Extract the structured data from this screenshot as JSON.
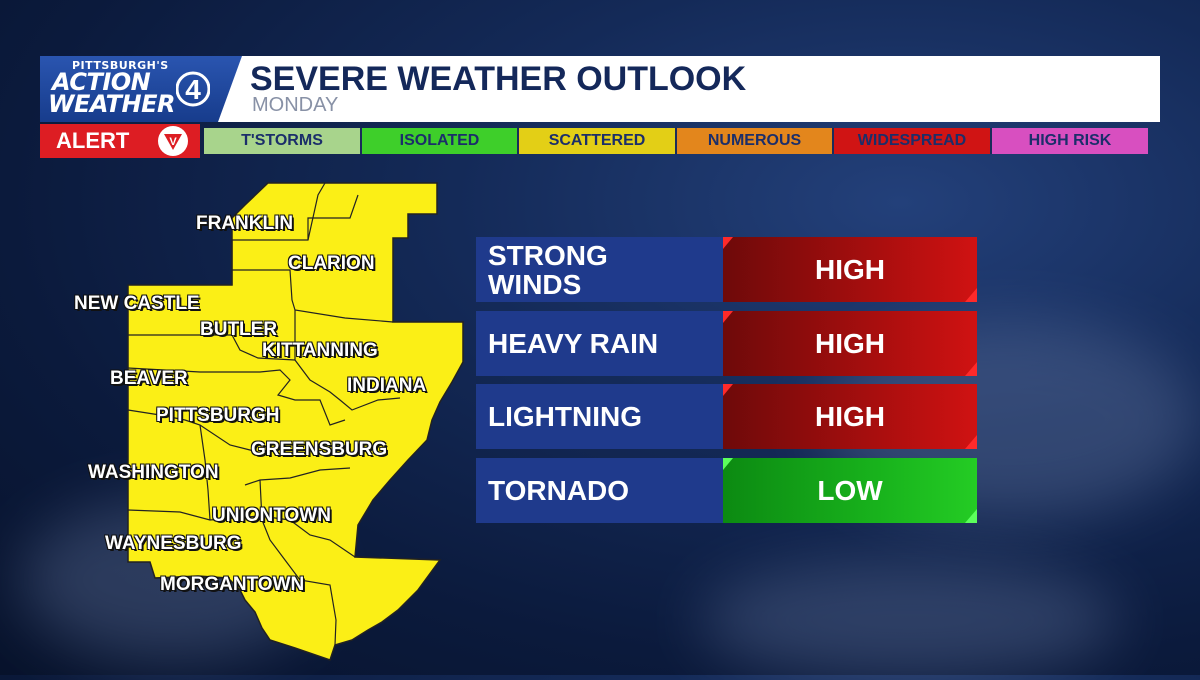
{
  "brand": {
    "line1": "PITTSBURGH'S",
    "line2": "ACTION",
    "line3": "WEATHER",
    "number": "4"
  },
  "header": {
    "title": "SEVERE WEATHER OUTLOOK",
    "subtitle": "MONDAY"
  },
  "alert": {
    "label": "ALERT",
    "badge": "V"
  },
  "legend": [
    {
      "label": "T'STORMS",
      "color": "#a8d48c"
    },
    {
      "label": "ISOLATED",
      "color": "#3ecf2a"
    },
    {
      "label": "SCATTERED",
      "color": "#e3cf16"
    },
    {
      "label": "NUMEROUS",
      "color": "#e3861c"
    },
    {
      "label": "WIDESPREAD",
      "color": "#d01414"
    },
    {
      "label": "HIGH RISK",
      "color": "#d84fc0"
    }
  ],
  "map": {
    "fill_color": "#fbef16",
    "cities": [
      "FRANKLIN",
      "CLARION",
      "NEW CASTLE",
      "BUTLER",
      "KITTANNING",
      "BEAVER",
      "INDIANA",
      "PITTSBURGH",
      "GREENSBURG",
      "WASHINGTON",
      "UNIONTOWN",
      "WAYNESBURG",
      "MORGANTOWN"
    ]
  },
  "threats": [
    {
      "label": "STRONG\nWINDS",
      "level": "HIGH"
    },
    {
      "label": "HEAVY RAIN",
      "level": "HIGH"
    },
    {
      "label": "LIGHTNING",
      "level": "HIGH"
    },
    {
      "label": "TORNADO",
      "level": "LOW"
    }
  ]
}
